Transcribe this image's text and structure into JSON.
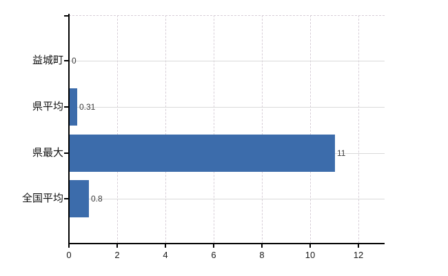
{
  "chart_data": {
    "type": "bar",
    "orientation": "horizontal",
    "title": "",
    "xlabel": "",
    "ylabel": "",
    "categories": [
      "益城町",
      "県平均",
      "県最大",
      "全国平均"
    ],
    "values": [
      0,
      0.31,
      11,
      0.8
    ],
    "value_labels": [
      "0",
      "0.31",
      "11",
      "0.8"
    ],
    "x_ticks": [
      0,
      2,
      4,
      6,
      8,
      10,
      12
    ],
    "xlim": [
      0,
      13.1
    ],
    "grid": true,
    "legend": false,
    "bar_color": "#3c6cab",
    "axis_color": "#000000",
    "solid_gridline_color": "#d9d9d9",
    "dashed_gridline_color": "#d7ced7",
    "category_label_color": "#111111",
    "value_label_color": "#3a3a3a",
    "tick_label_color": "#1a1a1a",
    "background_color": "#ffffff"
  }
}
